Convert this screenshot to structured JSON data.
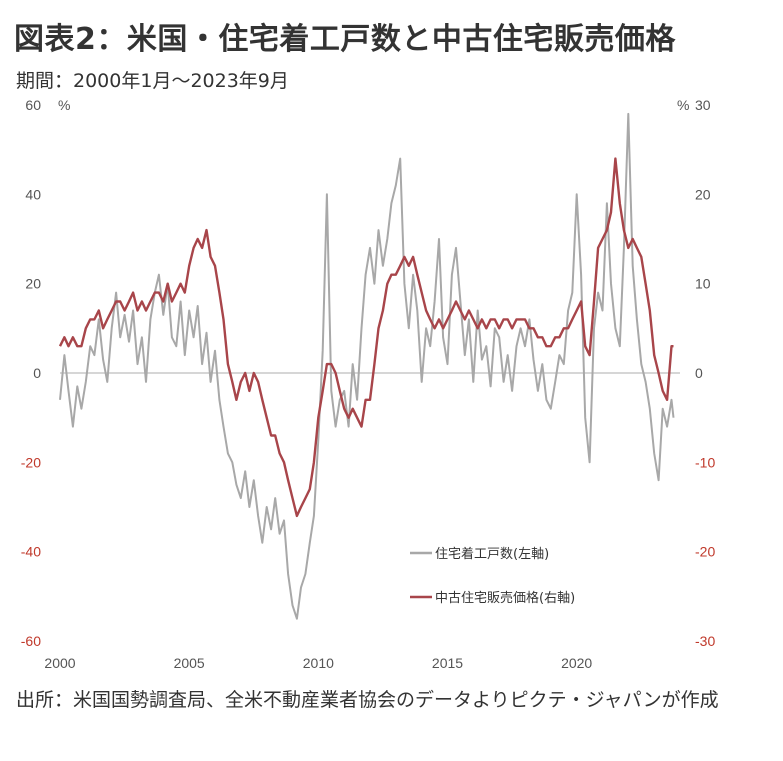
{
  "header": {
    "title": "図表2：米国・住宅着工戸数と中古住宅販売価格",
    "period": "期間：2000年1月～2023年9月"
  },
  "footer": {
    "source": "出所：米国国勢調査局、全米不動産業者協会のデータよりピクテ・ジャパンが作成"
  },
  "colors": {
    "starts": "#a8a8a8",
    "price": "#a8454a",
    "zero_line": "#c8c8c8",
    "right_axis": "#c0392b"
  },
  "chart_data": {
    "type": "line",
    "left_axis": {
      "unit": "%",
      "ylim": [
        -60,
        60
      ],
      "ticks": [
        "60",
        "40",
        "20",
        "0",
        "-20",
        "-40",
        "-60"
      ]
    },
    "right_axis": {
      "unit": "%",
      "ylim": [
        -30,
        30
      ],
      "ticks": [
        "30",
        "20",
        "10",
        "0",
        "-10",
        "-20",
        "-30"
      ]
    },
    "x_ticks": [
      "2000",
      "2005",
      "2010",
      "2015",
      "2020"
    ],
    "xlim": [
      2000.0,
      2024.0
    ],
    "grid": false,
    "legend_position": "bottom-right",
    "series": [
      {
        "name": "住宅着工戸数(左軸)",
        "axis": "left",
        "points": [
          [
            2000.0,
            -6
          ],
          [
            2000.17,
            4
          ],
          [
            2000.33,
            -4
          ],
          [
            2000.5,
            -12
          ],
          [
            2000.67,
            -3
          ],
          [
            2000.83,
            -8
          ],
          [
            2001.0,
            -2
          ],
          [
            2001.17,
            6
          ],
          [
            2001.33,
            4
          ],
          [
            2001.5,
            12
          ],
          [
            2001.67,
            3
          ],
          [
            2001.83,
            -2
          ],
          [
            2002.0,
            10
          ],
          [
            2002.17,
            18
          ],
          [
            2002.33,
            8
          ],
          [
            2002.5,
            13
          ],
          [
            2002.67,
            7
          ],
          [
            2002.83,
            14
          ],
          [
            2003.0,
            2
          ],
          [
            2003.17,
            8
          ],
          [
            2003.33,
            -2
          ],
          [
            2003.5,
            12
          ],
          [
            2003.67,
            18
          ],
          [
            2003.83,
            22
          ],
          [
            2004.0,
            13
          ],
          [
            2004.17,
            20
          ],
          [
            2004.33,
            8
          ],
          [
            2004.5,
            6
          ],
          [
            2004.67,
            16
          ],
          [
            2004.83,
            4
          ],
          [
            2005.0,
            14
          ],
          [
            2005.17,
            8
          ],
          [
            2005.33,
            15
          ],
          [
            2005.5,
            2
          ],
          [
            2005.67,
            9
          ],
          [
            2005.83,
            -2
          ],
          [
            2006.0,
            5
          ],
          [
            2006.17,
            -6
          ],
          [
            2006.33,
            -12
          ],
          [
            2006.5,
            -18
          ],
          [
            2006.67,
            -20
          ],
          [
            2006.83,
            -25
          ],
          [
            2007.0,
            -28
          ],
          [
            2007.17,
            -22
          ],
          [
            2007.33,
            -30
          ],
          [
            2007.5,
            -24
          ],
          [
            2007.67,
            -32
          ],
          [
            2007.83,
            -38
          ],
          [
            2008.0,
            -30
          ],
          [
            2008.17,
            -35
          ],
          [
            2008.33,
            -28
          ],
          [
            2008.5,
            -36
          ],
          [
            2008.67,
            -33
          ],
          [
            2008.83,
            -45
          ],
          [
            2009.0,
            -52
          ],
          [
            2009.17,
            -55
          ],
          [
            2009.33,
            -48
          ],
          [
            2009.5,
            -45
          ],
          [
            2009.67,
            -38
          ],
          [
            2009.83,
            -32
          ],
          [
            2010.0,
            -15
          ],
          [
            2010.17,
            5
          ],
          [
            2010.33,
            40
          ],
          [
            2010.5,
            -4
          ],
          [
            2010.67,
            -12
          ],
          [
            2010.83,
            -6
          ],
          [
            2011.0,
            -4
          ],
          [
            2011.17,
            -12
          ],
          [
            2011.33,
            2
          ],
          [
            2011.5,
            -6
          ],
          [
            2011.67,
            10
          ],
          [
            2011.83,
            22
          ],
          [
            2012.0,
            28
          ],
          [
            2012.17,
            20
          ],
          [
            2012.33,
            32
          ],
          [
            2012.5,
            24
          ],
          [
            2012.67,
            30
          ],
          [
            2012.83,
            38
          ],
          [
            2013.0,
            42
          ],
          [
            2013.17,
            48
          ],
          [
            2013.33,
            20
          ],
          [
            2013.5,
            10
          ],
          [
            2013.67,
            22
          ],
          [
            2013.83,
            14
          ],
          [
            2014.0,
            -2
          ],
          [
            2014.17,
            10
          ],
          [
            2014.33,
            6
          ],
          [
            2014.5,
            16
          ],
          [
            2014.67,
            30
          ],
          [
            2014.83,
            8
          ],
          [
            2015.0,
            2
          ],
          [
            2015.17,
            22
          ],
          [
            2015.33,
            28
          ],
          [
            2015.5,
            16
          ],
          [
            2015.67,
            4
          ],
          [
            2015.83,
            12
          ],
          [
            2016.0,
            -2
          ],
          [
            2016.17,
            14
          ],
          [
            2016.33,
            3
          ],
          [
            2016.5,
            6
          ],
          [
            2016.67,
            -3
          ],
          [
            2016.83,
            10
          ],
          [
            2017.0,
            8
          ],
          [
            2017.17,
            -2
          ],
          [
            2017.33,
            4
          ],
          [
            2017.5,
            -4
          ],
          [
            2017.67,
            6
          ],
          [
            2017.83,
            10
          ],
          [
            2018.0,
            6
          ],
          [
            2018.17,
            12
          ],
          [
            2018.33,
            3
          ],
          [
            2018.5,
            -4
          ],
          [
            2018.67,
            2
          ],
          [
            2018.83,
            -6
          ],
          [
            2019.0,
            -8
          ],
          [
            2019.17,
            -2
          ],
          [
            2019.33,
            4
          ],
          [
            2019.5,
            2
          ],
          [
            2019.67,
            14
          ],
          [
            2019.83,
            18
          ],
          [
            2020.0,
            40
          ],
          [
            2020.17,
            22
          ],
          [
            2020.33,
            -10
          ],
          [
            2020.5,
            -20
          ],
          [
            2020.67,
            10
          ],
          [
            2020.83,
            18
          ],
          [
            2021.0,
            14
          ],
          [
            2021.17,
            38
          ],
          [
            2021.33,
            20
          ],
          [
            2021.5,
            10
          ],
          [
            2021.67,
            6
          ],
          [
            2021.83,
            28
          ],
          [
            2022.0,
            58
          ],
          [
            2022.17,
            24
          ],
          [
            2022.33,
            12
          ],
          [
            2022.5,
            2
          ],
          [
            2022.67,
            -2
          ],
          [
            2022.83,
            -8
          ],
          [
            2023.0,
            -18
          ],
          [
            2023.17,
            -24
          ],
          [
            2023.33,
            -8
          ],
          [
            2023.5,
            -12
          ],
          [
            2023.67,
            -6
          ],
          [
            2023.75,
            -10
          ]
        ]
      },
      {
        "name": "中古住宅販売価格(右軸)",
        "axis": "right",
        "points": [
          [
            2000.0,
            3
          ],
          [
            2000.17,
            4
          ],
          [
            2000.33,
            3
          ],
          [
            2000.5,
            4
          ],
          [
            2000.67,
            3
          ],
          [
            2000.83,
            3
          ],
          [
            2001.0,
            5
          ],
          [
            2001.17,
            6
          ],
          [
            2001.33,
            6
          ],
          [
            2001.5,
            7
          ],
          [
            2001.67,
            5
          ],
          [
            2001.83,
            6
          ],
          [
            2002.0,
            7
          ],
          [
            2002.17,
            8
          ],
          [
            2002.33,
            8
          ],
          [
            2002.5,
            7
          ],
          [
            2002.67,
            8
          ],
          [
            2002.83,
            9
          ],
          [
            2003.0,
            7
          ],
          [
            2003.17,
            8
          ],
          [
            2003.33,
            7
          ],
          [
            2003.5,
            8
          ],
          [
            2003.67,
            9
          ],
          [
            2003.83,
            9
          ],
          [
            2004.0,
            8
          ],
          [
            2004.17,
            10
          ],
          [
            2004.33,
            8
          ],
          [
            2004.5,
            9
          ],
          [
            2004.67,
            10
          ],
          [
            2004.83,
            9
          ],
          [
            2005.0,
            12
          ],
          [
            2005.17,
            14
          ],
          [
            2005.33,
            15
          ],
          [
            2005.5,
            14
          ],
          [
            2005.67,
            16
          ],
          [
            2005.83,
            13
          ],
          [
            2006.0,
            12
          ],
          [
            2006.17,
            9
          ],
          [
            2006.33,
            6
          ],
          [
            2006.5,
            1
          ],
          [
            2006.67,
            -1
          ],
          [
            2006.83,
            -3
          ],
          [
            2007.0,
            -1
          ],
          [
            2007.17,
            0
          ],
          [
            2007.33,
            -2
          ],
          [
            2007.5,
            0
          ],
          [
            2007.67,
            -1
          ],
          [
            2007.83,
            -3
          ],
          [
            2008.0,
            -5
          ],
          [
            2008.17,
            -7
          ],
          [
            2008.33,
            -7
          ],
          [
            2008.5,
            -9
          ],
          [
            2008.67,
            -10
          ],
          [
            2008.83,
            -12
          ],
          [
            2009.0,
            -14
          ],
          [
            2009.17,
            -16
          ],
          [
            2009.33,
            -15
          ],
          [
            2009.5,
            -14
          ],
          [
            2009.67,
            -13
          ],
          [
            2009.83,
            -10
          ],
          [
            2010.0,
            -5
          ],
          [
            2010.17,
            -2
          ],
          [
            2010.33,
            1
          ],
          [
            2010.5,
            1
          ],
          [
            2010.67,
            0
          ],
          [
            2010.83,
            -2
          ],
          [
            2011.0,
            -4
          ],
          [
            2011.17,
            -5
          ],
          [
            2011.33,
            -4
          ],
          [
            2011.5,
            -5
          ],
          [
            2011.67,
            -6
          ],
          [
            2011.83,
            -3
          ],
          [
            2012.0,
            -3
          ],
          [
            2012.17,
            1
          ],
          [
            2012.33,
            5
          ],
          [
            2012.5,
            7
          ],
          [
            2012.67,
            10
          ],
          [
            2012.83,
            11
          ],
          [
            2013.0,
            11
          ],
          [
            2013.17,
            12
          ],
          [
            2013.33,
            13
          ],
          [
            2013.5,
            12
          ],
          [
            2013.67,
            13
          ],
          [
            2013.83,
            11
          ],
          [
            2014.0,
            9
          ],
          [
            2014.17,
            7
          ],
          [
            2014.33,
            6
          ],
          [
            2014.5,
            5
          ],
          [
            2014.67,
            6
          ],
          [
            2014.83,
            5
          ],
          [
            2015.0,
            6
          ],
          [
            2015.17,
            7
          ],
          [
            2015.33,
            8
          ],
          [
            2015.5,
            7
          ],
          [
            2015.67,
            6
          ],
          [
            2015.83,
            7
          ],
          [
            2016.0,
            6
          ],
          [
            2016.17,
            5
          ],
          [
            2016.33,
            6
          ],
          [
            2016.5,
            5
          ],
          [
            2016.67,
            6
          ],
          [
            2016.83,
            6
          ],
          [
            2017.0,
            5
          ],
          [
            2017.17,
            6
          ],
          [
            2017.33,
            6
          ],
          [
            2017.5,
            5
          ],
          [
            2017.67,
            6
          ],
          [
            2017.83,
            6
          ],
          [
            2018.0,
            6
          ],
          [
            2018.17,
            5
          ],
          [
            2018.33,
            5
          ],
          [
            2018.5,
            4
          ],
          [
            2018.67,
            4
          ],
          [
            2018.83,
            3
          ],
          [
            2019.0,
            3
          ],
          [
            2019.17,
            4
          ],
          [
            2019.33,
            4
          ],
          [
            2019.5,
            5
          ],
          [
            2019.67,
            5
          ],
          [
            2019.83,
            6
          ],
          [
            2020.0,
            7
          ],
          [
            2020.17,
            8
          ],
          [
            2020.33,
            3
          ],
          [
            2020.5,
            2
          ],
          [
            2020.67,
            8
          ],
          [
            2020.83,
            14
          ],
          [
            2021.0,
            15
          ],
          [
            2021.17,
            16
          ],
          [
            2021.33,
            18
          ],
          [
            2021.5,
            24
          ],
          [
            2021.67,
            19
          ],
          [
            2021.83,
            16
          ],
          [
            2022.0,
            14
          ],
          [
            2022.17,
            15
          ],
          [
            2022.33,
            14
          ],
          [
            2022.5,
            13
          ],
          [
            2022.67,
            10
          ],
          [
            2022.83,
            7
          ],
          [
            2023.0,
            2
          ],
          [
            2023.17,
            0
          ],
          [
            2023.33,
            -2
          ],
          [
            2023.5,
            -3
          ],
          [
            2023.67,
            3
          ],
          [
            2023.75,
            3
          ]
        ]
      }
    ]
  }
}
